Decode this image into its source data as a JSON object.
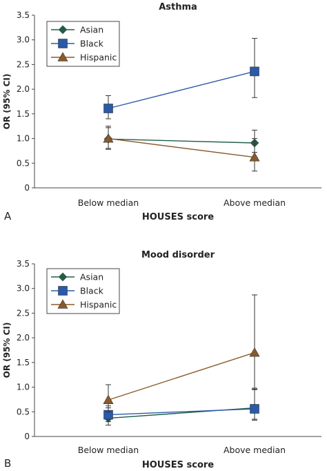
{
  "chart_data": [
    {
      "type": "line",
      "panel_label": "A",
      "title": "Asthma",
      "xlabel": "HOUSES score",
      "ylabel": "OR (95% CI)",
      "categories": [
        "Below median",
        "Above median"
      ],
      "ylim": [
        0,
        3.5
      ],
      "yticks": [
        "0",
        "0.5",
        "1.0",
        "1.5",
        "2.0",
        "2.5",
        "3.0",
        "3.5"
      ],
      "grid": false,
      "legend_position": "top-left",
      "series": [
        {
          "name": "Asian",
          "marker": "diamond",
          "color": "#1e5e46",
          "values": [
            0.99,
            0.91
          ],
          "ci_low": [
            0.8,
            0.72
          ],
          "ci_high": [
            1.22,
            1.17
          ]
        },
        {
          "name": "Black",
          "marker": "square",
          "color": "#2a5aa8",
          "values": [
            1.61,
            2.36
          ],
          "ci_low": [
            1.4,
            1.83
          ],
          "ci_high": [
            1.87,
            3.03
          ]
        },
        {
          "name": "Hispanic",
          "marker": "triangle",
          "color": "#8a5a2a",
          "values": [
            1.0,
            0.62
          ],
          "ci_low": [
            0.78,
            0.34
          ],
          "ci_high": [
            1.25,
            1.0
          ]
        }
      ]
    },
    {
      "type": "line",
      "panel_label": "B",
      "title": "Mood disorder",
      "xlabel": "HOUSES score",
      "ylabel": "OR (95% CI)",
      "categories": [
        "Below median",
        "Above median"
      ],
      "ylim": [
        0,
        3.5
      ],
      "yticks": [
        "0",
        "0.5",
        "1.0",
        "1.5",
        "2.0",
        "2.5",
        "3.0",
        "3.5"
      ],
      "grid": false,
      "legend_position": "top-left",
      "series": [
        {
          "name": "Asian",
          "marker": "diamond",
          "color": "#1e5e46",
          "values": [
            0.37,
            0.58
          ],
          "ci_low": [
            0.23,
            0.35
          ],
          "ci_high": [
            0.58,
            0.98
          ]
        },
        {
          "name": "Black",
          "marker": "square",
          "color": "#2a5aa8",
          "values": [
            0.44,
            0.56
          ],
          "ci_low": [
            0.3,
            0.33
          ],
          "ci_high": [
            0.62,
            0.96
          ]
        },
        {
          "name": "Hispanic",
          "marker": "triangle",
          "color": "#8a5a2a",
          "values": [
            0.74,
            1.7
          ],
          "ci_low": [
            0.5,
            0.95
          ],
          "ci_high": [
            1.05,
            2.87
          ]
        }
      ]
    }
  ]
}
